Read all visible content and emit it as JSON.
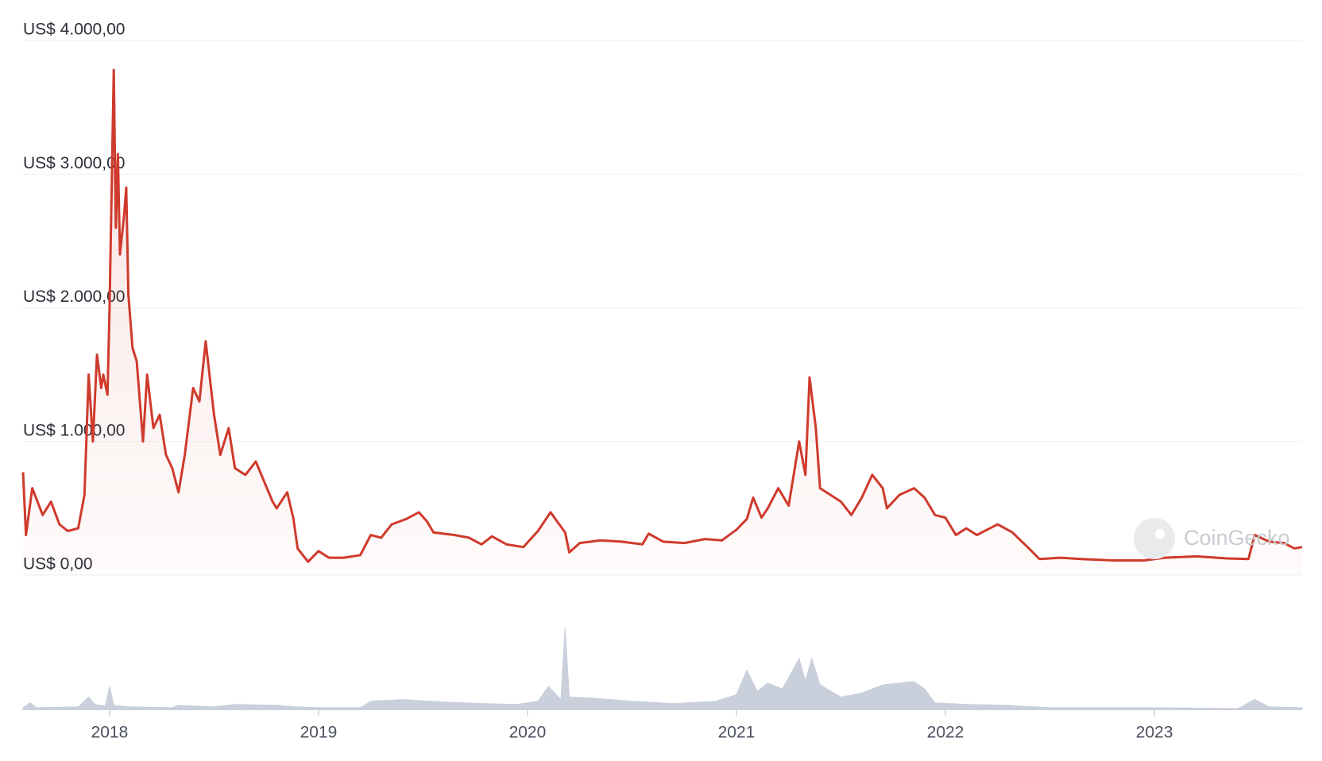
{
  "chart_data": {
    "type": "line",
    "x": [
      2017.586,
      2017.6,
      2017.63,
      2017.68,
      2017.72,
      2017.76,
      2017.8,
      2017.85,
      2017.88,
      2017.9,
      2017.92,
      2017.94,
      2017.96,
      2017.97,
      2017.99,
      2018.0,
      2018.02,
      2018.03,
      2018.04,
      2018.05,
      2018.07,
      2018.08,
      2018.09,
      2018.11,
      2018.13,
      2018.16,
      2018.18,
      2018.21,
      2018.24,
      2018.27,
      2018.3,
      2018.33,
      2018.36,
      2018.4,
      2018.43,
      2018.46,
      2018.5,
      2018.53,
      2018.57,
      2018.6,
      2018.65,
      2018.7,
      2018.74,
      2018.78,
      2018.8,
      2018.85,
      2018.88,
      2018.9,
      2018.95,
      2019.0,
      2019.05,
      2019.12,
      2019.2,
      2019.25,
      2019.3,
      2019.35,
      2019.42,
      2019.48,
      2019.52,
      2019.55,
      2019.65,
      2019.72,
      2019.78,
      2019.83,
      2019.9,
      2019.98,
      2020.05,
      2020.11,
      2020.18,
      2020.2,
      2020.25,
      2020.35,
      2020.45,
      2020.55,
      2020.58,
      2020.65,
      2020.75,
      2020.85,
      2020.93,
      2021.0,
      2021.05,
      2021.08,
      2021.12,
      2021.15,
      2021.2,
      2021.25,
      2021.3,
      2021.33,
      2021.35,
      2021.38,
      2021.4,
      2021.45,
      2021.5,
      2021.55,
      2021.6,
      2021.65,
      2021.7,
      2021.72,
      2021.78,
      2021.85,
      2021.9,
      2021.95,
      2022.0,
      2022.05,
      2022.1,
      2022.15,
      2022.25,
      2022.32,
      2022.4,
      2022.45,
      2022.55,
      2022.65,
      2022.8,
      2022.95,
      2023.05,
      2023.2,
      2023.35,
      2023.45,
      2023.48,
      2023.55,
      2023.62,
      2023.67,
      2023.707
    ],
    "series": [
      {
        "name": "Price",
        "color": "#cf3a2c",
        "values": [
          770,
          300,
          650,
          450,
          550,
          380,
          330,
          350,
          600,
          1500,
          1000,
          1650,
          1400,
          1500,
          1350,
          2000,
          3780,
          2600,
          3150,
          2400,
          2700,
          2900,
          2100,
          1700,
          1600,
          1000,
          1500,
          1100,
          1200,
          900,
          800,
          620,
          900,
          1400,
          1300,
          1750,
          1200,
          900,
          1100,
          800,
          750,
          850,
          700,
          550,
          500,
          620,
          420,
          200,
          100,
          180,
          130,
          130,
          150,
          300,
          280,
          380,
          420,
          470,
          400,
          320,
          300,
          280,
          230,
          290,
          230,
          210,
          330,
          470,
          320,
          170,
          240,
          260,
          250,
          230,
          310,
          250,
          240,
          270,
          260,
          340,
          420,
          580,
          430,
          500,
          650,
          520,
          1000,
          750,
          1480,
          1100,
          650,
          600,
          550,
          450,
          580,
          750,
          650,
          500,
          600,
          650,
          580,
          450,
          430,
          300,
          350,
          300,
          380,
          320,
          200,
          120,
          130,
          120,
          110,
          110,
          130,
          140,
          125,
          120,
          300,
          250,
          240,
          200,
          210
        ]
      },
      {
        "name": "Volume",
        "color": "#c9d0dc",
        "axis": "y2",
        "x": [
          2017.586,
          2017.62,
          2017.65,
          2017.85,
          2017.9,
          2017.93,
          2017.98,
          2018.0,
          2018.02,
          2018.1,
          2018.3,
          2018.33,
          2018.5,
          2018.6,
          2018.8,
          2018.9,
          2019.0,
          2019.2,
          2019.25,
          2019.4,
          2019.6,
          2019.8,
          2019.95,
          2020.05,
          2020.1,
          2020.16,
          2020.18,
          2020.2,
          2020.3,
          2020.5,
          2020.7,
          2020.9,
          2021.0,
          2021.05,
          2021.1,
          2021.15,
          2021.22,
          2021.3,
          2021.33,
          2021.36,
          2021.4,
          2021.5,
          2021.6,
          2021.7,
          2021.85,
          2021.9,
          2021.95,
          2022.1,
          2022.3,
          2022.5,
          2022.8,
          2023.0,
          2023.4,
          2023.48,
          2023.55,
          2023.707
        ],
        "values": [
          2,
          8,
          2,
          3,
          15,
          6,
          4,
          28,
          5,
          3,
          2,
          5,
          3,
          6,
          5,
          3,
          2,
          2,
          10,
          12,
          9,
          7,
          6,
          10,
          28,
          12,
          100,
          15,
          14,
          10,
          7,
          10,
          18,
          48,
          22,
          32,
          25,
          62,
          35,
          62,
          30,
          15,
          20,
          30,
          34,
          25,
          8,
          6,
          5,
          2,
          2,
          2,
          1,
          12,
          3,
          2
        ]
      }
    ],
    "xlim": [
      2017.586,
      2023.707
    ],
    "xticks": [
      2018,
      2019,
      2020,
      2021,
      2022,
      2023
    ],
    "ylim": [
      0,
      4000
    ],
    "yticks": [
      {
        "value": 0,
        "label": "US$ 0,00"
      },
      {
        "value": 1000,
        "label": "US$ 1.000,00"
      },
      {
        "value": 2000,
        "label": "US$ 2.000,00"
      },
      {
        "value": 3000,
        "label": "US$ 3.000,00"
      },
      {
        "value": 4000,
        "label": "US$ 4.000,00"
      }
    ],
    "y2lim": [
      0,
      100
    ],
    "grid": true,
    "watermark": "CoinGecko"
  }
}
